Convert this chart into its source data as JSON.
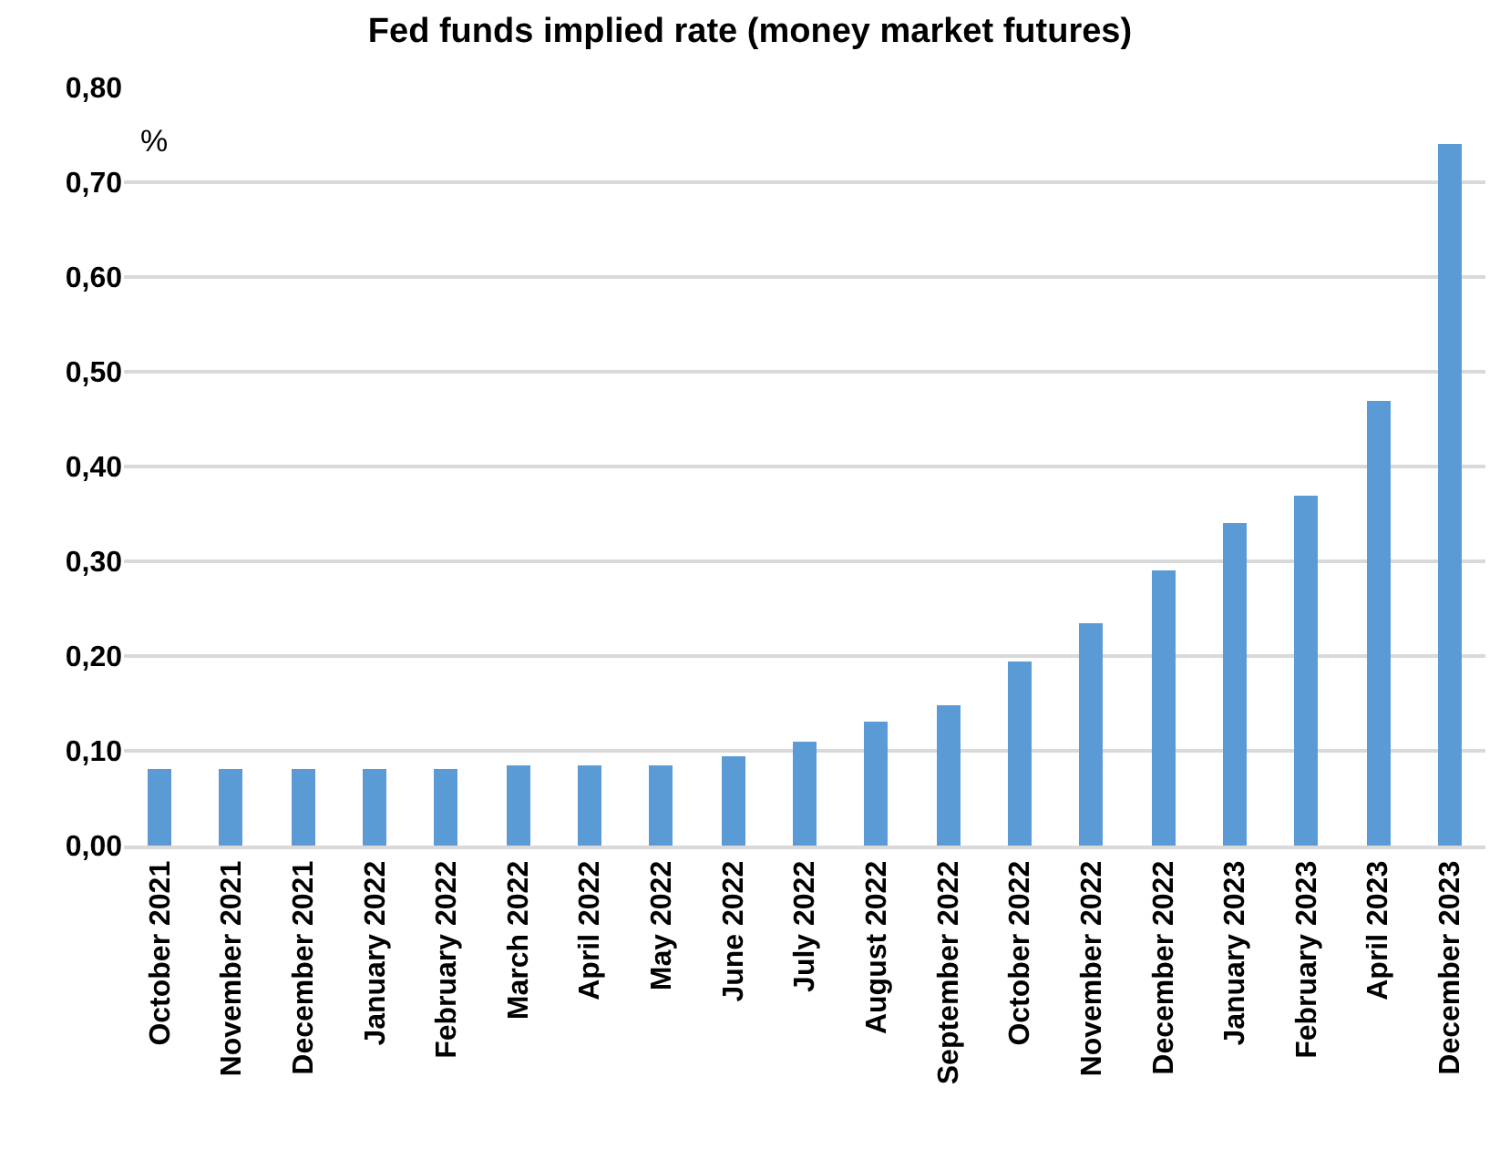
{
  "chart_data": {
    "type": "bar",
    "title": "Fed funds implied rate (money market futures)",
    "categories": [
      "October 2021",
      "November 2021",
      "December 2021",
      "January 2022",
      "February 2022",
      "March 2022",
      "April 2022",
      "May 2022",
      "June 2022",
      "July 2022",
      "August 2022",
      "September 2022",
      "October 2022",
      "November 2022",
      "December 2022",
      "January 2023",
      "February 2023",
      "April 2023",
      "December 2023"
    ],
    "values": [
      0.08,
      0.08,
      0.08,
      0.08,
      0.08,
      0.085,
      0.085,
      0.085,
      0.095,
      0.11,
      0.13,
      0.148,
      0.195,
      0.234,
      0.29,
      0.34,
      0.37,
      0.47,
      0.74
    ],
    "color": "#5b9bd5",
    "ylim": [
      0,
      0.8
    ],
    "yticks": [
      {
        "value": 0,
        "label": "0,00"
      },
      {
        "value": 0.1,
        "label": "0,10"
      },
      {
        "value": 0.2,
        "label": "0,20"
      },
      {
        "value": 0.3,
        "label": "0,30"
      },
      {
        "value": 0.4,
        "label": "0,40"
      },
      {
        "value": 0.5,
        "label": "0,50"
      },
      {
        "value": 0.6,
        "label": "0,60"
      },
      {
        "value": 0.7,
        "label": "0,70"
      },
      {
        "value": 0.8,
        "label": "0,80"
      }
    ],
    "annotations": [
      "%"
    ],
    "grid": "y",
    "legend": false
  }
}
